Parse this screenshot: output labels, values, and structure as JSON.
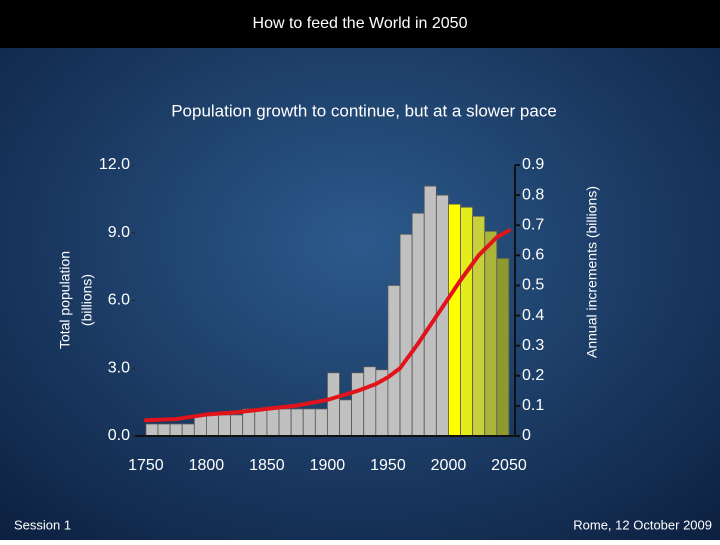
{
  "header": {
    "title": "How to feed the World in 2050"
  },
  "footer": {
    "left": "Session 1",
    "right": "Rome, 12 October 2009"
  },
  "chart_data": {
    "type": "combo",
    "title": "Population growth to continue, but at a slower pace",
    "ylabel": [
      "Total population",
      "(billions)"
    ],
    "y2label": "Annual increments (billions)",
    "xlim": [
      1741,
      2055
    ],
    "xticks": [
      1750,
      1800,
      1850,
      1900,
      1950,
      2000,
      2050
    ],
    "ylim": [
      0,
      12
    ],
    "yticks": [
      {
        "value": 0,
        "label": "0.0"
      },
      {
        "value": 3,
        "label": "3.0"
      },
      {
        "value": 6,
        "label": "6.0"
      },
      {
        "value": 9,
        "label": "9.0"
      },
      {
        "value": 12,
        "label": "12.0"
      }
    ],
    "y2lim": [
      0,
      0.9
    ],
    "y2ticks": [
      0,
      0.1,
      0.2,
      0.3,
      0.4,
      0.5,
      0.6,
      0.7,
      0.8,
      0.9
    ],
    "bars": {
      "axis": "y2",
      "bins": [
        1750,
        1760,
        1770,
        1780,
        1790,
        1800,
        1810,
        1820,
        1830,
        1840,
        1850,
        1860,
        1870,
        1880,
        1890,
        1900,
        1910,
        1920,
        1930,
        1940,
        1950,
        1960,
        1970,
        1980,
        1990,
        2000,
        2010,
        2020,
        2030,
        2040,
        2050
      ],
      "values": [
        0.04,
        0.04,
        0.04,
        0.04,
        0.07,
        0.07,
        0.07,
        0.07,
        0.09,
        0.09,
        0.09,
        0.09,
        0.09,
        0.09,
        0.09,
        0.21,
        0.12,
        0.21,
        0.23,
        0.22,
        0.5,
        0.67,
        0.74,
        0.83,
        0.8,
        0.77,
        0.76,
        0.73,
        0.68,
        0.59
      ],
      "colors": [
        "#c0c0c0",
        "#c0c0c0",
        "#c0c0c0",
        "#c0c0c0",
        "#c0c0c0",
        "#c0c0c0",
        "#c0c0c0",
        "#c0c0c0",
        "#c0c0c0",
        "#c0c0c0",
        "#c0c0c0",
        "#c0c0c0",
        "#c0c0c0",
        "#c0c0c0",
        "#c0c0c0",
        "#c0c0c0",
        "#c0c0c0",
        "#c0c0c0",
        "#c0c0c0",
        "#c0c0c0",
        "#c0c0c0",
        "#c0c0c0",
        "#c0c0c0",
        "#c0c0c0",
        "#c0c0c0",
        "#ffff00",
        "#e4ec1c",
        "#c8d03c",
        "#aab438",
        "#8e9a30"
      ]
    },
    "line": {
      "color": "#e0141a",
      "x": [
        1750,
        1775,
        1800,
        1825,
        1850,
        1875,
        1900,
        1925,
        1940,
        1950,
        1960,
        1975,
        1990,
        2000,
        2010,
        2025,
        2040,
        2050
      ],
      "values": [
        0.7,
        0.75,
        0.95,
        1.05,
        1.2,
        1.35,
        1.6,
        2.0,
        2.3,
        2.6,
        3.0,
        4.1,
        5.3,
        6.1,
        6.9,
        8.0,
        8.8,
        9.1
      ]
    }
  }
}
